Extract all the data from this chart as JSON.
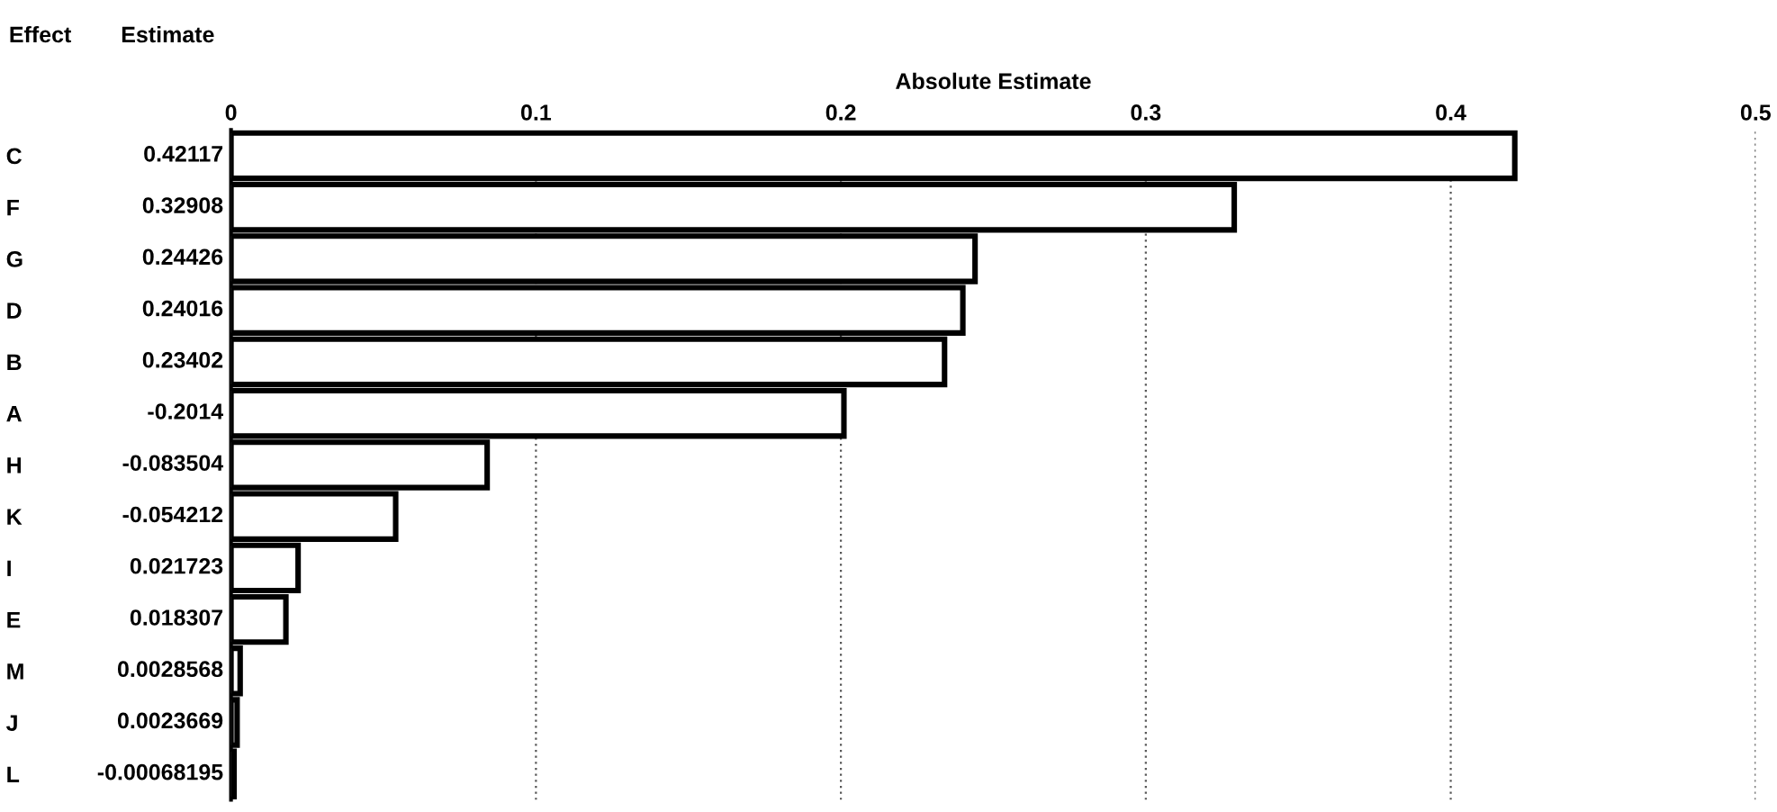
{
  "chart_data": {
    "type": "bar",
    "orientation": "horizontal",
    "xlabel": "Absolute Estimate",
    "ylabel": "Effect",
    "annotations": [
      "Estimate",
      "0.42117",
      "0.32908",
      "0.24426",
      "0.24016",
      "0.23402",
      "-0.2014",
      "-0.083504",
      "-0.054212",
      "0.021723",
      "0.018307",
      "0.0028568",
      "0.0023669",
      "-0.00068195"
    ],
    "categories": [
      "C",
      "F",
      "G",
      "D",
      "B",
      "A",
      "H",
      "K",
      "I",
      "E",
      "M",
      "J",
      "L"
    ],
    "values": [
      0.421,
      0.329,
      0.244,
      0.24,
      0.234,
      0.201,
      0.084,
      0.054,
      0.022,
      0.018,
      0.003,
      0.002,
      0.001
    ],
    "color": "#ffffff",
    "xlim": [
      0,
      0.5
    ],
    "xticks": [
      0,
      0.1,
      0.2,
      0.3,
      0.4,
      0.5
    ],
    "grid": "x"
  }
}
